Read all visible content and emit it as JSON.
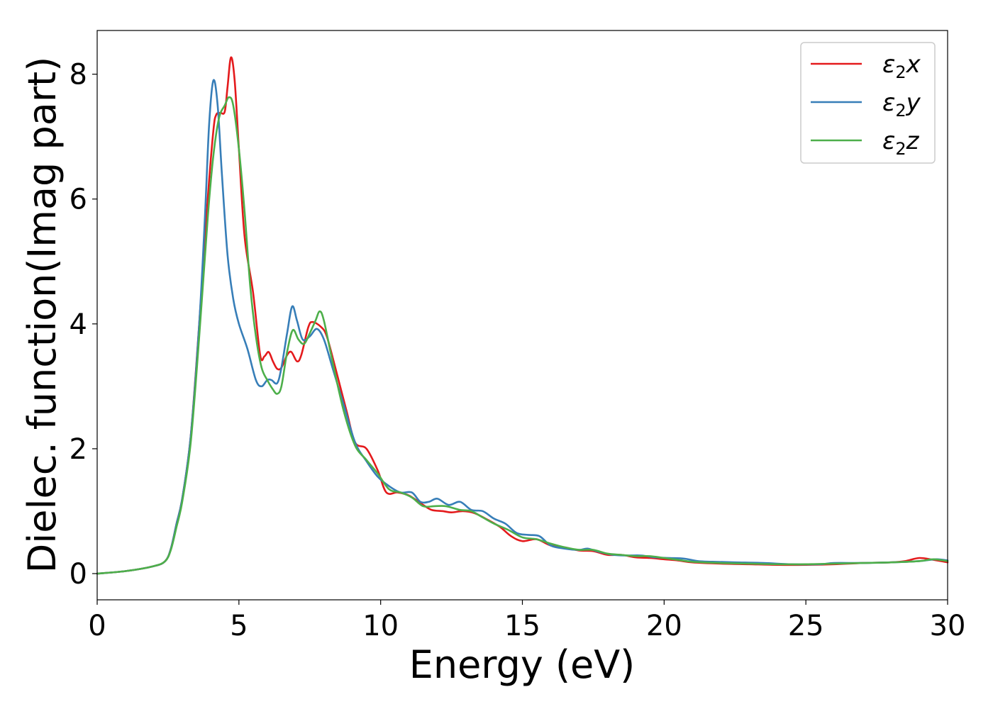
{
  "chart_data": {
    "type": "line",
    "xlabel": "Energy (eV)",
    "ylabel": "Dielec. function(Imag part)",
    "xlim": [
      0,
      30
    ],
    "ylim": [
      -0.42,
      8.7
    ],
    "xticks": [
      "0",
      "5",
      "10",
      "15",
      "20",
      "25",
      "30"
    ],
    "xtick_values": [
      0,
      5,
      10,
      15,
      20,
      25,
      30
    ],
    "yticks": [
      "0",
      "2",
      "4",
      "6",
      "8"
    ],
    "ytick_values": [
      0,
      2,
      4,
      6,
      8
    ],
    "grid": false,
    "legend_position": "top-right",
    "series": [
      {
        "name": "ε2x",
        "legend_main": "ε",
        "legend_sub": "2",
        "legend_var": "x",
        "color": "#e41a1c",
        "points": [
          [
            0,
            0
          ],
          [
            1,
            0.04
          ],
          [
            2,
            0.12
          ],
          [
            2.4,
            0.2
          ],
          [
            2.6,
            0.4
          ],
          [
            2.8,
            0.8
          ],
          [
            3.0,
            1.2
          ],
          [
            3.3,
            2.2
          ],
          [
            3.6,
            4.0
          ],
          [
            3.9,
            6.0
          ],
          [
            4.1,
            7.1
          ],
          [
            4.2,
            7.35
          ],
          [
            4.35,
            7.38
          ],
          [
            4.5,
            7.4
          ],
          [
            4.6,
            7.8
          ],
          [
            4.72,
            8.27
          ],
          [
            4.85,
            7.9
          ],
          [
            5.0,
            6.8
          ],
          [
            5.2,
            5.4
          ],
          [
            5.5,
            4.5
          ],
          [
            5.75,
            3.5
          ],
          [
            5.9,
            3.48
          ],
          [
            6.05,
            3.55
          ],
          [
            6.2,
            3.4
          ],
          [
            6.35,
            3.28
          ],
          [
            6.5,
            3.3
          ],
          [
            6.7,
            3.5
          ],
          [
            6.85,
            3.55
          ],
          [
            7.05,
            3.4
          ],
          [
            7.2,
            3.5
          ],
          [
            7.45,
            3.95
          ],
          [
            7.6,
            4.03
          ],
          [
            7.9,
            3.95
          ],
          [
            8.1,
            3.8
          ],
          [
            8.4,
            3.3
          ],
          [
            8.8,
            2.6
          ],
          [
            9.1,
            2.1
          ],
          [
            9.5,
            2.0
          ],
          [
            9.9,
            1.65
          ],
          [
            10.2,
            1.3
          ],
          [
            10.6,
            1.3
          ],
          [
            11.0,
            1.25
          ],
          [
            11.5,
            1.1
          ],
          [
            11.8,
            1.02
          ],
          [
            12.2,
            1.0
          ],
          [
            12.5,
            0.98
          ],
          [
            12.9,
            1.0
          ],
          [
            13.3,
            0.97
          ],
          [
            13.7,
            0.88
          ],
          [
            14.2,
            0.75
          ],
          [
            14.6,
            0.6
          ],
          [
            15.0,
            0.52
          ],
          [
            15.5,
            0.55
          ],
          [
            16.0,
            0.45
          ],
          [
            16.5,
            0.42
          ],
          [
            17.0,
            0.37
          ],
          [
            17.5,
            0.36
          ],
          [
            18.0,
            0.3
          ],
          [
            18.5,
            0.3
          ],
          [
            19.0,
            0.26
          ],
          [
            19.5,
            0.25
          ],
          [
            20.0,
            0.23
          ],
          [
            20.5,
            0.21
          ],
          [
            21.0,
            0.18
          ],
          [
            22.0,
            0.16
          ],
          [
            23.0,
            0.15
          ],
          [
            24.0,
            0.14
          ],
          [
            25.0,
            0.14
          ],
          [
            26.0,
            0.15
          ],
          [
            27.0,
            0.17
          ],
          [
            28.0,
            0.18
          ],
          [
            28.5,
            0.2
          ],
          [
            29.0,
            0.25
          ],
          [
            29.5,
            0.22
          ],
          [
            30.0,
            0.18
          ]
        ]
      },
      {
        "name": "ε2y",
        "legend_main": "ε",
        "legend_sub": "2",
        "legend_var": "y",
        "color": "#377eb8",
        "points": [
          [
            0,
            0
          ],
          [
            1,
            0.04
          ],
          [
            2,
            0.12
          ],
          [
            2.4,
            0.2
          ],
          [
            2.6,
            0.4
          ],
          [
            2.8,
            0.8
          ],
          [
            3.0,
            1.2
          ],
          [
            3.3,
            2.2
          ],
          [
            3.6,
            4.0
          ],
          [
            3.8,
            5.7
          ],
          [
            3.95,
            7.2
          ],
          [
            4.1,
            7.9
          ],
          [
            4.25,
            7.5
          ],
          [
            4.4,
            6.4
          ],
          [
            4.6,
            5.1
          ],
          [
            4.8,
            4.4
          ],
          [
            5.0,
            4.0
          ],
          [
            5.3,
            3.6
          ],
          [
            5.6,
            3.1
          ],
          [
            5.8,
            3.0
          ],
          [
            6.0,
            3.1
          ],
          [
            6.15,
            3.1
          ],
          [
            6.35,
            3.05
          ],
          [
            6.5,
            3.3
          ],
          [
            6.7,
            3.85
          ],
          [
            6.88,
            4.28
          ],
          [
            7.05,
            4.05
          ],
          [
            7.25,
            3.75
          ],
          [
            7.5,
            3.8
          ],
          [
            7.75,
            3.92
          ],
          [
            8.0,
            3.75
          ],
          [
            8.3,
            3.3
          ],
          [
            8.7,
            2.7
          ],
          [
            9.1,
            2.1
          ],
          [
            9.5,
            1.8
          ],
          [
            9.9,
            1.55
          ],
          [
            10.3,
            1.4
          ],
          [
            10.7,
            1.3
          ],
          [
            11.1,
            1.3
          ],
          [
            11.4,
            1.15
          ],
          [
            11.7,
            1.15
          ],
          [
            12.0,
            1.2
          ],
          [
            12.4,
            1.1
          ],
          [
            12.8,
            1.15
          ],
          [
            13.2,
            1.02
          ],
          [
            13.6,
            1.0
          ],
          [
            14.0,
            0.88
          ],
          [
            14.4,
            0.8
          ],
          [
            14.8,
            0.65
          ],
          [
            15.2,
            0.62
          ],
          [
            15.6,
            0.6
          ],
          [
            16.0,
            0.45
          ],
          [
            16.5,
            0.4
          ],
          [
            17.0,
            0.38
          ],
          [
            17.3,
            0.4
          ],
          [
            17.7,
            0.35
          ],
          [
            18.2,
            0.3
          ],
          [
            18.7,
            0.29
          ],
          [
            19.2,
            0.29
          ],
          [
            19.7,
            0.26
          ],
          [
            20.2,
            0.25
          ],
          [
            20.7,
            0.24
          ],
          [
            21.2,
            0.2
          ],
          [
            21.7,
            0.19
          ],
          [
            22.5,
            0.18
          ],
          [
            23.5,
            0.17
          ],
          [
            24.5,
            0.15
          ],
          [
            25.5,
            0.15
          ],
          [
            26.0,
            0.17
          ],
          [
            27.0,
            0.17
          ],
          [
            28.0,
            0.18
          ],
          [
            29.0,
            0.2
          ],
          [
            29.6,
            0.23
          ],
          [
            30.0,
            0.21
          ]
        ]
      },
      {
        "name": "ε2z",
        "legend_main": "ε",
        "legend_sub": "2",
        "legend_var": "z",
        "color": "#4daf4a",
        "points": [
          [
            0,
            0
          ],
          [
            1,
            0.04
          ],
          [
            2,
            0.12
          ],
          [
            2.4,
            0.2
          ],
          [
            2.6,
            0.38
          ],
          [
            2.8,
            0.75
          ],
          [
            3.0,
            1.15
          ],
          [
            3.3,
            2.1
          ],
          [
            3.6,
            3.8
          ],
          [
            3.9,
            5.7
          ],
          [
            4.1,
            6.7
          ],
          [
            4.3,
            7.3
          ],
          [
            4.5,
            7.5
          ],
          [
            4.65,
            7.63
          ],
          [
            4.8,
            7.5
          ],
          [
            5.0,
            6.8
          ],
          [
            5.2,
            5.8
          ],
          [
            5.4,
            4.6
          ],
          [
            5.6,
            3.8
          ],
          [
            5.8,
            3.3
          ],
          [
            6.0,
            3.1
          ],
          [
            6.2,
            2.95
          ],
          [
            6.35,
            2.88
          ],
          [
            6.5,
            3.0
          ],
          [
            6.7,
            3.55
          ],
          [
            6.9,
            3.9
          ],
          [
            7.1,
            3.75
          ],
          [
            7.3,
            3.68
          ],
          [
            7.5,
            3.85
          ],
          [
            7.7,
            4.05
          ],
          [
            7.85,
            4.2
          ],
          [
            8.0,
            4.05
          ],
          [
            8.3,
            3.4
          ],
          [
            8.7,
            2.6
          ],
          [
            9.1,
            2.05
          ],
          [
            9.5,
            1.82
          ],
          [
            9.9,
            1.6
          ],
          [
            10.3,
            1.35
          ],
          [
            10.7,
            1.3
          ],
          [
            11.1,
            1.22
          ],
          [
            11.5,
            1.08
          ],
          [
            11.9,
            1.08
          ],
          [
            12.3,
            1.08
          ],
          [
            12.8,
            1.02
          ],
          [
            13.2,
            1.0
          ],
          [
            13.6,
            0.9
          ],
          [
            14.0,
            0.8
          ],
          [
            14.5,
            0.7
          ],
          [
            15.0,
            0.58
          ],
          [
            15.5,
            0.55
          ],
          [
            16.0,
            0.48
          ],
          [
            16.5,
            0.42
          ],
          [
            17.0,
            0.38
          ],
          [
            17.5,
            0.38
          ],
          [
            18.0,
            0.32
          ],
          [
            18.5,
            0.3
          ],
          [
            19.0,
            0.28
          ],
          [
            19.5,
            0.28
          ],
          [
            20.0,
            0.25
          ],
          [
            20.5,
            0.22
          ],
          [
            21.0,
            0.19
          ],
          [
            22.0,
            0.17
          ],
          [
            23.0,
            0.16
          ],
          [
            24.0,
            0.15
          ],
          [
            25.0,
            0.15
          ],
          [
            26.0,
            0.16
          ],
          [
            27.0,
            0.17
          ],
          [
            28.0,
            0.18
          ],
          [
            29.0,
            0.2
          ],
          [
            29.5,
            0.23
          ],
          [
            30.0,
            0.2
          ]
        ]
      }
    ]
  }
}
